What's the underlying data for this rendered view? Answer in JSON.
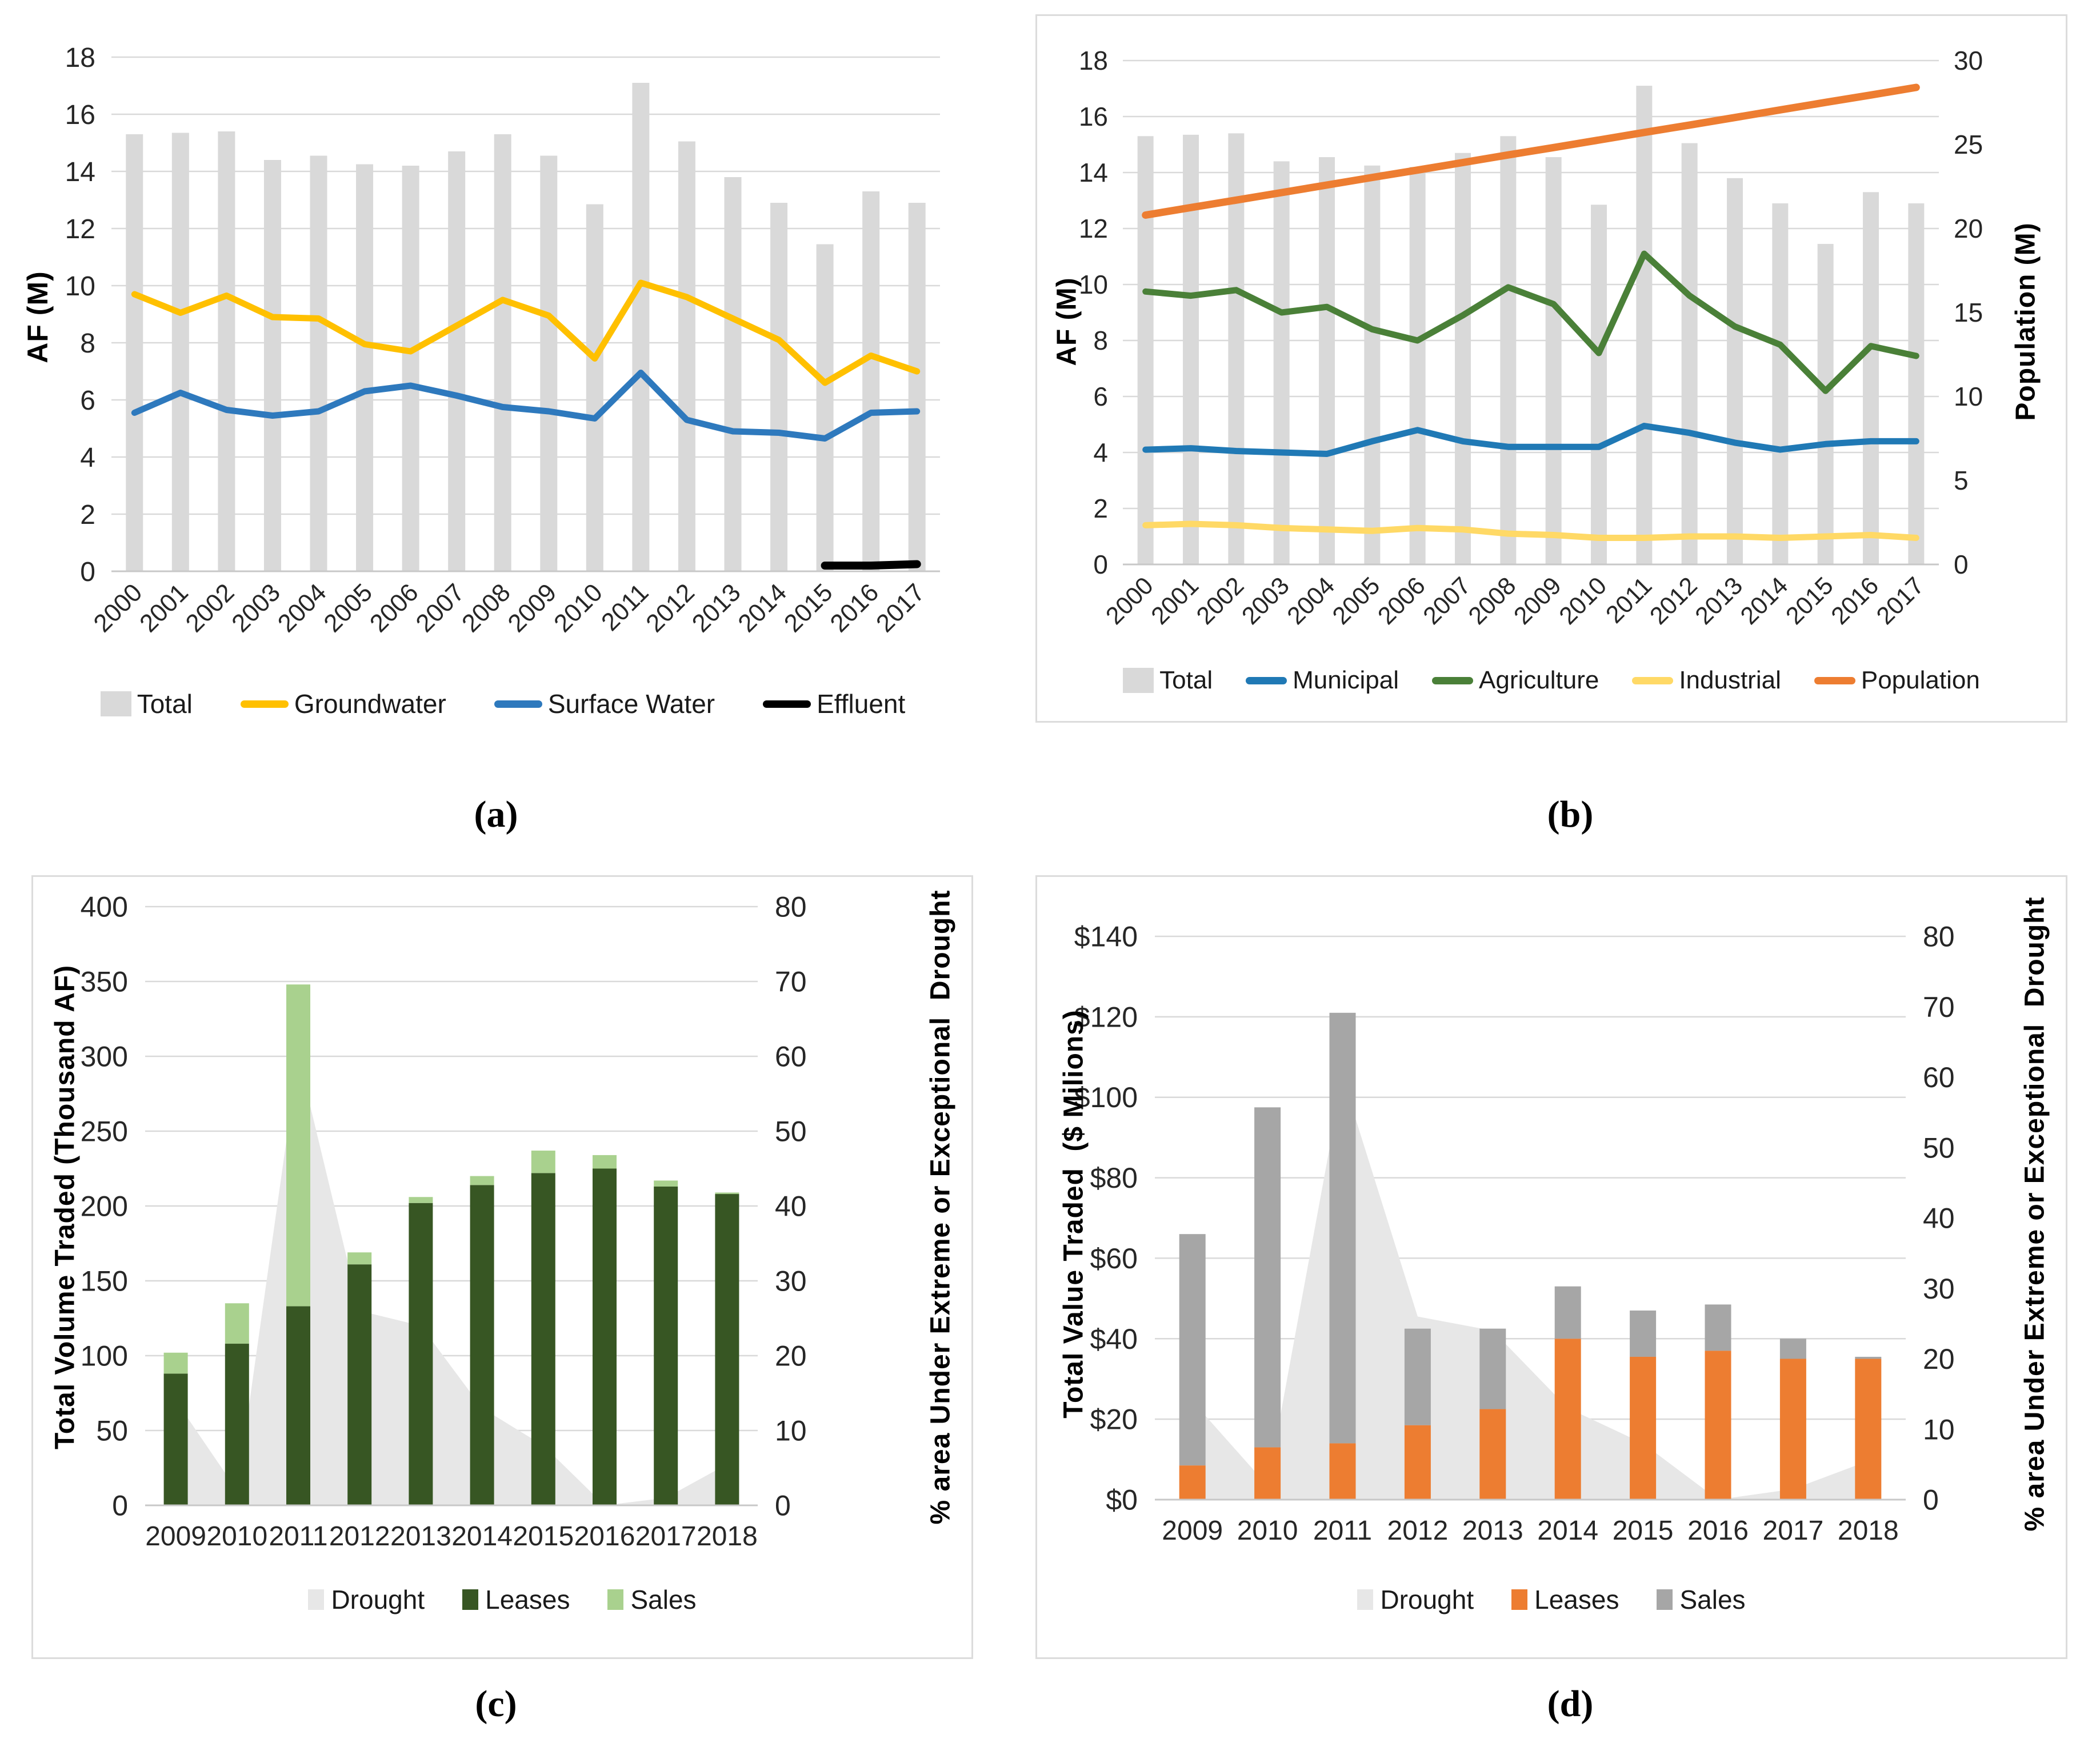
{
  "figure": {
    "captions": {
      "a": "(a)",
      "b": "(b)",
      "c": "(c)",
      "d": "(d)"
    }
  },
  "chart_data": [
    {
      "id": "a",
      "type": "combo-bar-line",
      "categories": [
        "2000",
        "2001",
        "2002",
        "2003",
        "2004",
        "2005",
        "2006",
        "2007",
        "2008",
        "2009",
        "2010",
        "2011",
        "2012",
        "2013",
        "2014",
        "2015",
        "2016",
        "2017"
      ],
      "left_axis": {
        "label": "AF (M)",
        "min": 0,
        "max": 18,
        "step": 2
      },
      "right_axis": null,
      "grid": true,
      "legend_position": "bottom",
      "series": [
        {
          "name": "Total",
          "type": "bar",
          "axis": "left",
          "color": "#D9D9D9",
          "values": [
            15.3,
            15.35,
            15.4,
            14.4,
            14.55,
            14.25,
            14.2,
            14.7,
            15.3,
            14.55,
            12.85,
            17.1,
            15.05,
            13.8,
            12.9,
            11.45,
            13.3,
            12.9
          ]
        },
        {
          "name": "Groundwater",
          "type": "line",
          "axis": "left",
          "color": "#FFC000",
          "values": [
            9.7,
            9.05,
            9.65,
            8.9,
            8.85,
            7.95,
            7.7,
            8.6,
            9.5,
            8.95,
            7.45,
            10.1,
            9.6,
            8.85,
            8.1,
            6.6,
            7.55,
            7.0
          ]
        },
        {
          "name": "Surface Water",
          "type": "line",
          "axis": "left",
          "color": "#2E79BD",
          "values": [
            5.55,
            6.25,
            5.65,
            5.45,
            5.6,
            6.3,
            6.5,
            6.15,
            5.75,
            5.6,
            5.35,
            6.95,
            5.3,
            4.9,
            4.85,
            4.65,
            5.55,
            5.6
          ]
        },
        {
          "name": "Effluent",
          "type": "line",
          "axis": "left",
          "color": "#000000",
          "values": [
            null,
            null,
            null,
            null,
            null,
            null,
            null,
            null,
            null,
            null,
            null,
            null,
            null,
            null,
            null,
            0.2,
            0.2,
            0.25
          ]
        }
      ]
    },
    {
      "id": "b",
      "type": "combo-bar-line",
      "categories": [
        "2000",
        "2001",
        "2002",
        "2003",
        "2004",
        "2005",
        "2006",
        "2007",
        "2008",
        "2009",
        "2010",
        "2011",
        "2012",
        "2013",
        "2014",
        "2015",
        "2016",
        "2017"
      ],
      "left_axis": {
        "label": "AF (M)",
        "min": 0,
        "max": 18,
        "step": 2
      },
      "right_axis": {
        "label": "Population (M)",
        "min": 0,
        "max": 30,
        "step": 5
      },
      "grid": true,
      "legend_position": "bottom",
      "series": [
        {
          "name": "Total",
          "type": "bar",
          "axis": "left",
          "color": "#D9D9D9",
          "values": [
            15.3,
            15.35,
            15.4,
            14.4,
            14.55,
            14.25,
            14.2,
            14.7,
            15.3,
            14.55,
            12.85,
            17.1,
            15.05,
            13.8,
            12.9,
            11.45,
            13.3,
            12.9
          ]
        },
        {
          "name": "Municipal",
          "type": "line",
          "axis": "left",
          "color": "#2079B5",
          "values": [
            4.1,
            4.15,
            4.05,
            4.0,
            3.95,
            4.4,
            4.8,
            4.4,
            4.2,
            4.2,
            4.2,
            4.95,
            4.7,
            4.35,
            4.1,
            4.3,
            4.4,
            4.4
          ]
        },
        {
          "name": "Agriculture",
          "type": "line",
          "axis": "left",
          "color": "#4A8038",
          "values": [
            9.75,
            9.6,
            9.8,
            9.0,
            9.2,
            8.4,
            8.0,
            8.9,
            9.9,
            9.3,
            7.55,
            11.1,
            9.6,
            8.5,
            7.85,
            6.2,
            7.8,
            7.45
          ]
        },
        {
          "name": "Industrial",
          "type": "line",
          "axis": "left",
          "color": "#FFD966",
          "values": [
            1.4,
            1.45,
            1.4,
            1.3,
            1.25,
            1.2,
            1.3,
            1.25,
            1.1,
            1.05,
            0.95,
            0.95,
            1.0,
            1.0,
            0.95,
            1.0,
            1.05,
            0.95
          ]
        },
        {
          "name": "Population",
          "type": "line",
          "axis": "right",
          "color": "#ED7D31",
          "values": [
            20.8,
            21.25,
            21.69,
            22.14,
            22.59,
            23.04,
            23.48,
            23.93,
            24.38,
            24.82,
            25.27,
            25.72,
            26.16,
            26.61,
            27.06,
            27.51,
            27.95,
            28.4
          ]
        }
      ]
    },
    {
      "id": "c",
      "type": "combo-area-stacked-bar",
      "categories": [
        "2009",
        "2010",
        "2011",
        "2012",
        "2013",
        "2014",
        "2015",
        "2016",
        "2017",
        "2018"
      ],
      "left_axis": {
        "label": "Total Volume Traded (Thousand AF)",
        "min": 0,
        "max": 400,
        "step": 50
      },
      "right_axis": {
        "label": "% area Under Extreme or Exceptional  Drought",
        "min": 0,
        "max": 80,
        "step": 10
      },
      "grid": true,
      "legend_position": "bottom",
      "series": [
        {
          "name": "Drought",
          "type": "area",
          "axis": "right",
          "color": "#E7E7E7",
          "values": [
            14,
            2,
            60,
            26,
            24,
            13,
            8,
            0,
            1,
            5.5
          ]
        },
        {
          "name": "Leases",
          "type": "bar",
          "axis": "left",
          "color": "#375623",
          "values": [
            88,
            108,
            133,
            161,
            202,
            214,
            222,
            225,
            213,
            208
          ]
        },
        {
          "name": "Sales",
          "type": "bar",
          "axis": "left",
          "color": "#A9D18E",
          "values": [
            14,
            27,
            215,
            8,
            4,
            6,
            15,
            9,
            4,
            1
          ]
        }
      ]
    },
    {
      "id": "d",
      "type": "combo-area-stacked-bar",
      "categories": [
        "2009",
        "2010",
        "2011",
        "2012",
        "2013",
        "2014",
        "2015",
        "2016",
        "2017",
        "2018"
      ],
      "left_axis": {
        "label": "Total Value Traded  ($ Milions)",
        "min": 0,
        "max": 140,
        "step": 20,
        "prefix": "$"
      },
      "right_axis": {
        "label": "% area Under Extreme or Exceptional  Drought",
        "min": 0,
        "max": 80,
        "step": 10
      },
      "grid": true,
      "legend_position": "bottom",
      "series": [
        {
          "name": "Drought",
          "type": "area",
          "axis": "right",
          "color": "#E7E7E7",
          "values": [
            14,
            2,
            60,
            26,
            24,
            13,
            8,
            0,
            1.5,
            5.5
          ]
        },
        {
          "name": "Leases",
          "type": "bar",
          "axis": "left",
          "color": "#ED7D31",
          "values": [
            8.5,
            13,
            14,
            18.5,
            22.5,
            40,
            35.5,
            37,
            35,
            35
          ]
        },
        {
          "name": "Sales",
          "type": "bar",
          "axis": "left",
          "color": "#A6A6A6",
          "values": [
            57.5,
            84.5,
            107,
            24,
            20,
            13,
            11.5,
            11.5,
            5,
            0.5
          ]
        }
      ]
    }
  ]
}
